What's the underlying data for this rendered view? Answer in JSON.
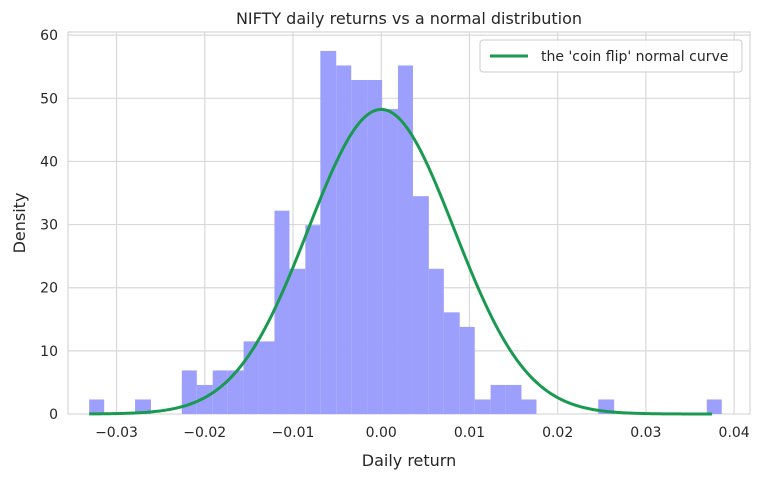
{
  "chart_data": {
    "type": "bar",
    "title": "NIFTY daily returns vs a normal distribution",
    "xlabel": "Daily return",
    "ylabel": "Density",
    "xlim": [
      -0.0355,
      0.0418
    ],
    "ylim": [
      0,
      60.5
    ],
    "xticks": [
      -0.03,
      -0.02,
      -0.01,
      0.0,
      0.01,
      0.02,
      0.03,
      0.04
    ],
    "xtick_labels": [
      "−0.03",
      "−0.02",
      "−0.01",
      "0.00",
      "0.01",
      "0.02",
      "0.03",
      "0.04"
    ],
    "yticks": [
      0,
      10,
      20,
      30,
      40,
      50,
      60
    ],
    "ytick_labels": [
      "0",
      "10",
      "20",
      "30",
      "40",
      "50",
      "60"
    ],
    "grid": true,
    "legend_position": "top-right",
    "histogram": {
      "color": "#9d9ffd",
      "bin_edges": [
        -0.0331,
        -0.0314,
        -0.0296,
        -0.0279,
        -0.0261,
        -0.0244,
        -0.0226,
        -0.0209,
        -0.0191,
        -0.0174,
        -0.0156,
        -0.0139,
        -0.0121,
        -0.0104,
        -0.0086,
        -0.0069,
        -0.0051,
        -0.0034,
        -0.0016,
        0.0001,
        0.0019,
        0.0036,
        0.0054,
        0.0071,
        0.0089,
        0.0106,
        0.0124,
        0.0141,
        0.0159,
        0.0176,
        0.0194,
        0.0211,
        0.0229,
        0.0246,
        0.0264,
        0.0281,
        0.0299,
        0.0316,
        0.0334,
        0.0351,
        0.0369,
        0.0386
      ],
      "values": [
        2.3,
        0,
        0,
        2.3,
        0,
        0,
        6.9,
        4.6,
        6.9,
        6.9,
        11.5,
        11.5,
        32.2,
        23.0,
        29.9,
        57.5,
        55.2,
        52.9,
        52.9,
        48.3,
        55.2,
        34.5,
        23.0,
        16.1,
        13.8,
        2.3,
        4.6,
        4.6,
        2.3,
        0,
        0,
        0,
        0,
        2.3,
        0,
        0,
        0,
        0,
        0,
        0,
        2.3
      ]
    },
    "series": [
      {
        "name": "the 'coin flip' normal curve",
        "type": "line",
        "color": "#1a9a50",
        "mean": 0.0,
        "std": 0.00827,
        "x_range": [
          -0.0331,
          0.0375
        ]
      }
    ]
  }
}
